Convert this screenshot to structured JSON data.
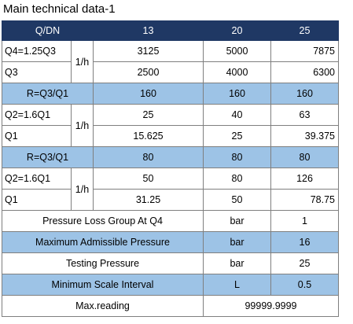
{
  "title": "Main technical data-1",
  "header": {
    "label": "Q/DN",
    "dn": [
      "13",
      "20",
      "25"
    ]
  },
  "unit_lph": "1/h",
  "groups": [
    {
      "top": {
        "label": "Q4=1.25Q3",
        "values": [
          "3125",
          "5000",
          "7875"
        ]
      },
      "bottom": {
        "label": "Q3",
        "values": [
          "2500",
          "4000",
          "6300"
        ]
      },
      "ratio": {
        "label": "R=Q3/Q1",
        "values": [
          "160",
          "160",
          "160"
        ]
      }
    },
    {
      "top": {
        "label": "Q2=1.6Q1",
        "values": [
          "25",
          "40",
          "63"
        ]
      },
      "bottom": {
        "label": "Q1",
        "values": [
          "15.625",
          "25",
          "39.375"
        ]
      },
      "ratio": {
        "label": "R=Q3/Q1",
        "values": [
          "80",
          "80",
          "80"
        ]
      }
    },
    {
      "top": {
        "label": "Q2=1.6Q1",
        "values": [
          "50",
          "80",
          "126"
        ]
      },
      "bottom": {
        "label": "Q1",
        "values": [
          "31.25",
          "50",
          "78.75"
        ]
      }
    }
  ],
  "specs": [
    {
      "label": "Pressure Loss Group At Q4",
      "unit": "bar",
      "value": "1",
      "shaded": false
    },
    {
      "label": "Maximum Admissible Pressure",
      "unit": "bar",
      "value": "16",
      "shaded": true
    },
    {
      "label": "Testing Pressure",
      "unit": "bar",
      "value": "25",
      "shaded": false
    },
    {
      "label": "Minimum Scale Interval",
      "unit": "L",
      "value": "0.5",
      "shaded": true
    }
  ],
  "max_reading": {
    "label": "Max.reading",
    "value": "99999.9999"
  }
}
